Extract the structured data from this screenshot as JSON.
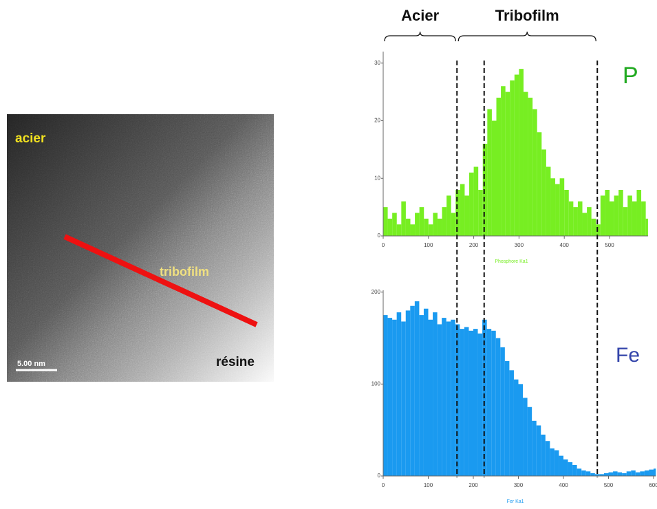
{
  "image": {
    "steel_label": "acier",
    "tribofilm_label": "tribofilm",
    "resin_label": "résine",
    "scale_label": "5.00 nm"
  },
  "regions": [
    {
      "label": "Acier",
      "from": 0,
      "to": 163
    },
    {
      "label": "Tribofilm",
      "from": 163,
      "to": 473
    }
  ],
  "dividers": [
    163,
    223,
    473
  ],
  "chart_data": [
    {
      "type": "bar",
      "element": "P",
      "xlabel": "Phosphore Ka1",
      "color": "#77ee22",
      "element_color": "#22aa22",
      "x": [
        0,
        10,
        20,
        30,
        40,
        50,
        60,
        70,
        80,
        90,
        100,
        110,
        120,
        130,
        140,
        150,
        160,
        170,
        180,
        190,
        200,
        210,
        220,
        230,
        240,
        250,
        260,
        270,
        280,
        290,
        300,
        310,
        320,
        330,
        340,
        350,
        360,
        370,
        380,
        390,
        400,
        410,
        420,
        430,
        440,
        450,
        460,
        470,
        480,
        490,
        500,
        510,
        520,
        530,
        540,
        550,
        560,
        570,
        580
      ],
      "values": [
        5,
        3,
        4,
        2,
        6,
        3,
        2,
        4,
        5,
        3,
        2,
        4,
        3,
        5,
        7,
        4,
        8,
        9,
        7,
        11,
        12,
        8,
        16,
        22,
        20,
        24,
        26,
        25,
        27,
        28,
        29,
        25,
        24,
        22,
        18,
        15,
        12,
        10,
        9,
        10,
        8,
        6,
        5,
        6,
        4,
        5,
        3,
        2,
        7,
        8,
        6,
        7,
        8,
        5,
        7,
        6,
        8,
        6,
        3
      ],
      "xlim": [
        0,
        585
      ],
      "xticks": [
        0,
        100,
        200,
        300,
        400,
        500
      ],
      "ylim": [
        0,
        32
      ],
      "yticks": [
        0,
        10,
        20,
        30
      ]
    },
    {
      "type": "bar",
      "element": "Fe",
      "xlabel": "Fer Ka1",
      "color": "#1a9af0",
      "element_color": "#3344aa",
      "x": [
        0,
        10,
        20,
        30,
        40,
        50,
        60,
        70,
        80,
        90,
        100,
        110,
        120,
        130,
        140,
        150,
        160,
        170,
        180,
        190,
        200,
        210,
        220,
        230,
        240,
        250,
        260,
        270,
        280,
        290,
        300,
        310,
        320,
        330,
        340,
        350,
        360,
        370,
        380,
        390,
        400,
        410,
        420,
        430,
        440,
        450,
        460,
        470,
        480,
        490,
        500,
        510,
        520,
        530,
        540,
        550,
        560,
        570,
        580,
        590,
        600
      ],
      "values": [
        175,
        172,
        170,
        178,
        168,
        180,
        185,
        190,
        175,
        182,
        170,
        178,
        165,
        172,
        168,
        170,
        165,
        160,
        162,
        158,
        160,
        155,
        170,
        160,
        158,
        150,
        140,
        125,
        115,
        105,
        100,
        85,
        75,
        60,
        55,
        45,
        38,
        30,
        28,
        22,
        18,
        15,
        12,
        8,
        6,
        5,
        3,
        2,
        2,
        3,
        4,
        5,
        4,
        3,
        5,
        6,
        4,
        5,
        6,
        7,
        8
      ],
      "xlim": [
        0,
        605
      ],
      "xticks": [
        0,
        100,
        200,
        300,
        400,
        500,
        600
      ],
      "ylim": [
        0,
        202
      ],
      "yticks": [
        0,
        100,
        200
      ]
    }
  ]
}
